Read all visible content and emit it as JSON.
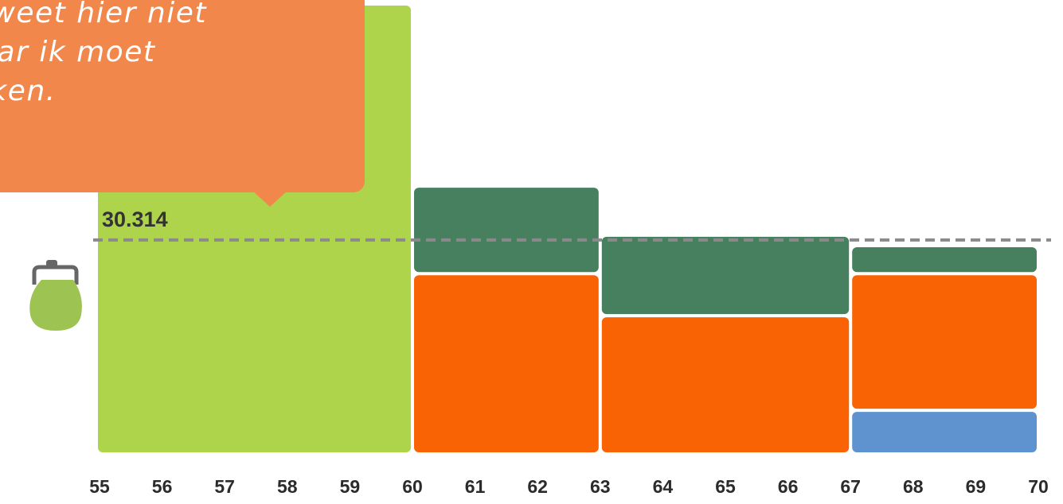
{
  "callout": {
    "lines": [
      "Ik weet hier niet",
      "waar ik moet",
      "kijken."
    ]
  },
  "icons": {
    "purse": "purse-icon"
  },
  "reference": {
    "label": "30.314"
  },
  "colors": {
    "light_green": "#AED44B",
    "dark_green": "#46805E",
    "orange": "#F96303",
    "blue": "#5E93CF",
    "purse": "#9DC352",
    "callout": "#F2874B"
  },
  "chart_data": {
    "type": "bar",
    "subtype": "stacked-variable-width",
    "xlabel": "",
    "ylabel": "",
    "x_ticks": [
      "55",
      "56",
      "57",
      "58",
      "59",
      "60",
      "61",
      "62",
      "63",
      "64",
      "65",
      "66",
      "67",
      "68",
      "69",
      "70"
    ],
    "x_range": [
      55,
      70
    ],
    "y_range": [
      0,
      64000
    ],
    "reference_line": {
      "value": 30314,
      "label": "30.314",
      "style": "dashed"
    },
    "bars": [
      {
        "from": 55,
        "to": 60,
        "segments": [
          {
            "color": "light_green",
            "value": 64000
          }
        ]
      },
      {
        "from": 60,
        "to": 63,
        "segments": [
          {
            "color": "orange",
            "value": 25500
          },
          {
            "color": "dark_green",
            "value": 12500
          }
        ]
      },
      {
        "from": 63,
        "to": 67,
        "segments": [
          {
            "color": "orange",
            "value": 19500
          },
          {
            "color": "dark_green",
            "value": 11500
          }
        ]
      },
      {
        "from": 67,
        "to": 70,
        "segments": [
          {
            "color": "blue",
            "value": 6000
          },
          {
            "color": "orange",
            "value": 19500
          },
          {
            "color": "dark_green",
            "value": 4000
          }
        ]
      }
    ]
  }
}
